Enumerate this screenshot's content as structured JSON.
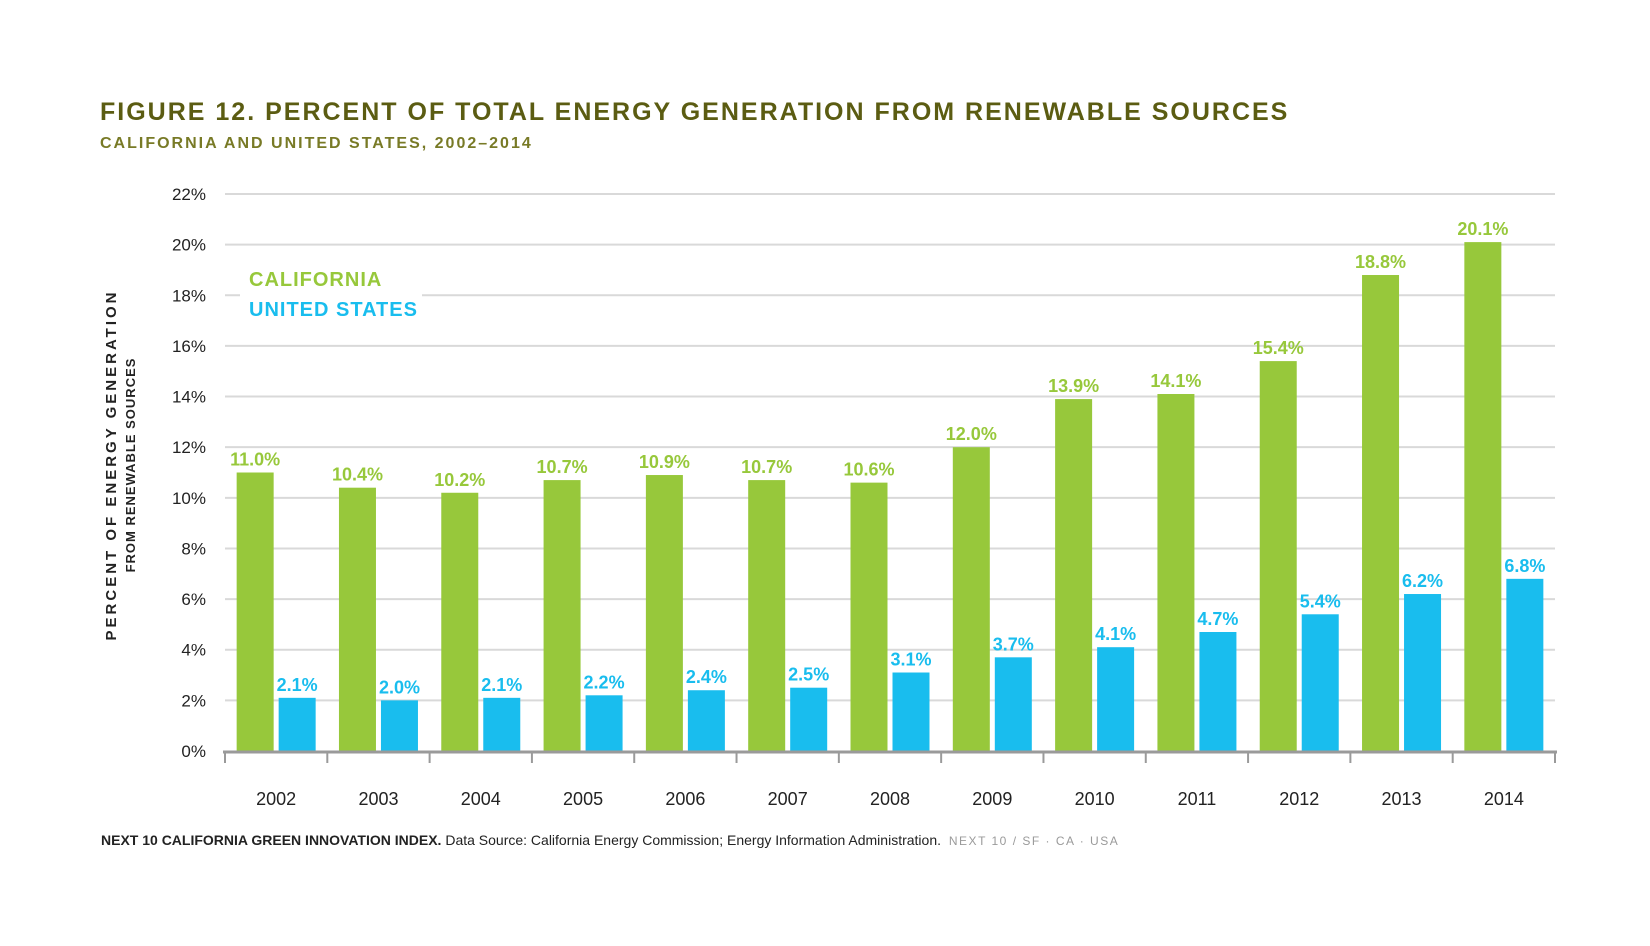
{
  "header": {
    "title": "FIGURE 12. PERCENT OF TOTAL ENERGY GENERATION FROM RENEWABLE SOURCES",
    "subtitle": "CALIFORNIA AND UNITED STATES, 2002–2014"
  },
  "colors": {
    "california": "#97c83b",
    "united_states": "#19bdee",
    "title": "#5b5c12",
    "grid": "#d9d9d9",
    "axis": "#9a9a9a",
    "tick_text": "#222222"
  },
  "footer": {
    "bold_text": "NEXT 10 CALIFORNIA GREEN INNOVATION INDEX.",
    "source_text": "Data Source: California Energy Commission; Energy Information Administration.",
    "brand_text": "NEXT 10  /  SF · CA · USA"
  },
  "chart_data": {
    "type": "bar",
    "ylabel": "PERCENT OF ENERGY GENERATION",
    "ylabel_sub": "FROM RENEWABLE SOURCES",
    "xlabel": "",
    "ylim": [
      0,
      22
    ],
    "yticks": [
      0,
      2,
      4,
      6,
      8,
      10,
      12,
      14,
      16,
      18,
      20,
      22
    ],
    "ytick_suffix": "%",
    "grid": true,
    "legend_position": "top-left",
    "categories": [
      "2002",
      "2003",
      "2004",
      "2005",
      "2006",
      "2007",
      "2008",
      "2009",
      "2010",
      "2011",
      "2012",
      "2013",
      "2014"
    ],
    "series": [
      {
        "name": "CALIFORNIA",
        "color": "#97c83b",
        "values": [
          11.0,
          10.4,
          10.2,
          10.7,
          10.9,
          10.7,
          10.6,
          12.0,
          13.9,
          14.1,
          15.4,
          18.8,
          20.1
        ],
        "labels": [
          "11.0%",
          "10.4%",
          "10.2%",
          "10.7%",
          "10.9%",
          "10.7%",
          "10.6%",
          "12.0%",
          "13.9%",
          "14.1%",
          "15.4%",
          "18.8%",
          "20.1%"
        ]
      },
      {
        "name": "UNITED STATES",
        "color": "#19bdee",
        "values": [
          2.1,
          2.0,
          2.1,
          2.2,
          2.4,
          2.5,
          3.1,
          3.7,
          4.1,
          4.7,
          5.4,
          6.2,
          6.8
        ],
        "labels": [
          "2.1%",
          "2.0%",
          "2.1%",
          "2.2%",
          "2.4%",
          "2.5%",
          "3.1%",
          "3.7%",
          "4.1%",
          "4.7%",
          "5.4%",
          "6.2%",
          "6.8%"
        ]
      }
    ]
  }
}
